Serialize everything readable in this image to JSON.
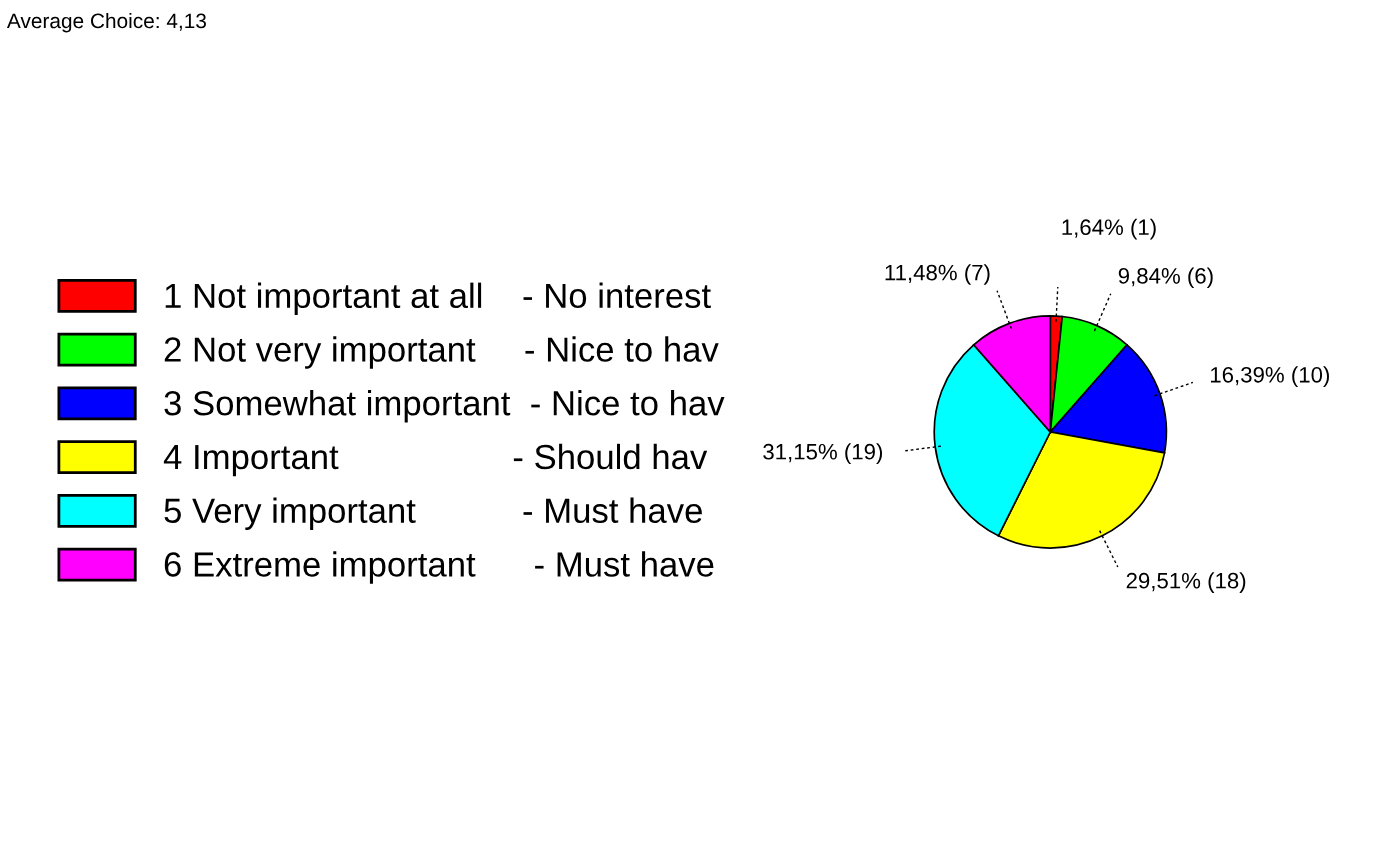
{
  "chart_data": {
    "type": "pie",
    "categories": [
      "1 Not important at all    - No interest",
      "2 Not very important     - Nice to hav",
      "3 Somewhat important  - Nice to hav",
      "4 Important                  - Should hav",
      "5 Very important           - Must have",
      "6 Extreme important      - Must have"
    ],
    "values": [
      1,
      6,
      10,
      18,
      19,
      7
    ],
    "value_labels": [
      "1,64% (1)",
      "9,84% (6)",
      "16,39% (10)",
      "29,51% (18)",
      "31,15% (19)",
      "11,48% (7)"
    ],
    "colors": [
      "#ff0000",
      "#00ff00",
      "#0000ff",
      "#ffff00",
      "#00ffff",
      "#ff00ff"
    ],
    "legend": "left",
    "annotations": [
      "Average Choice: 4,13"
    ]
  }
}
